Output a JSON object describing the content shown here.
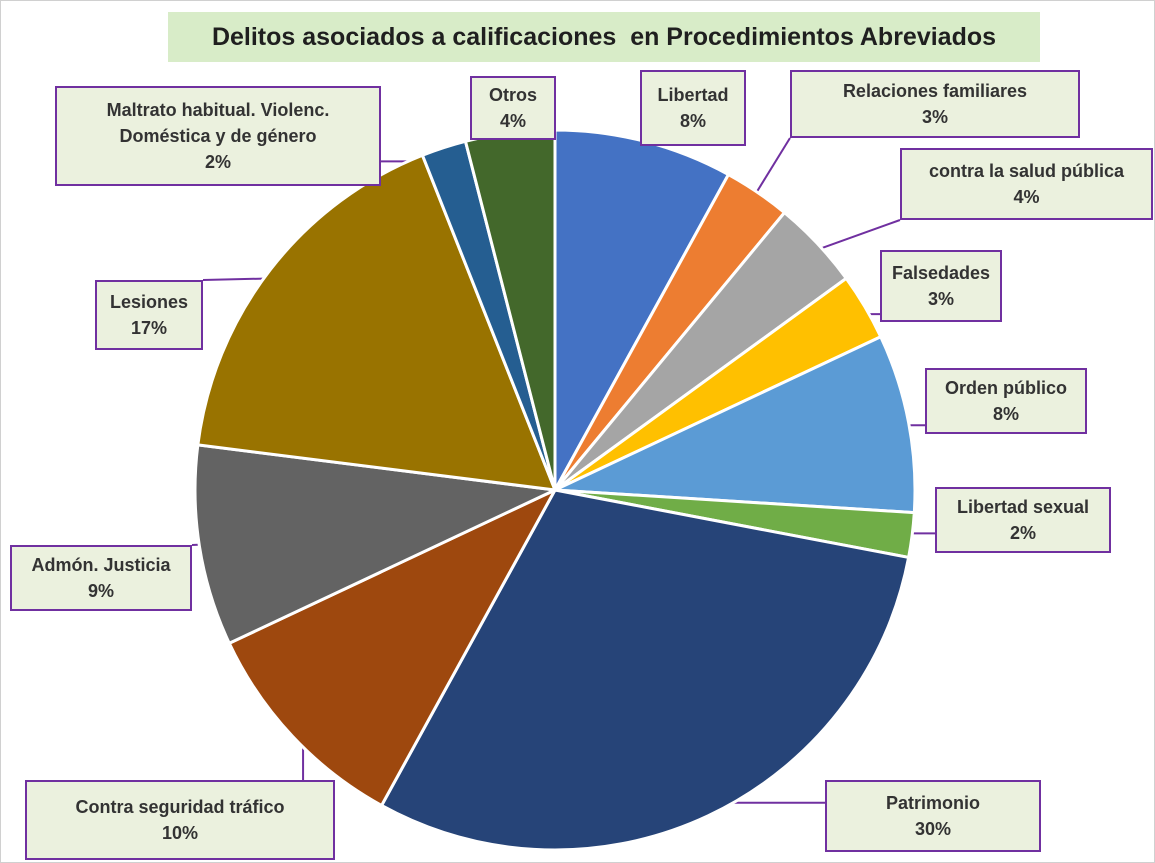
{
  "chart_data": {
    "type": "pie",
    "title": "Delitos asociados a calificaciones  en Procedimientos Abreviados",
    "categories": [
      "Libertad",
      "Relaciones familiares",
      "contra la salud pública",
      "Falsedades",
      "Orden público",
      "Libertad sexual",
      "Patrimonio",
      "Contra seguridad tráfico",
      "Admón. Justicia",
      "Lesiones",
      "Maltrato habitual. Violenc. Doméstica y de género",
      "Otros"
    ],
    "values": [
      8,
      3,
      4,
      3,
      8,
      2,
      30,
      10,
      9,
      17,
      2,
      4
    ],
    "value_labels": [
      "8%",
      "3%",
      "4%",
      "3%",
      "8%",
      "2%",
      "30%",
      "10%",
      "9%",
      "17%",
      "2%",
      "4%"
    ],
    "colors": [
      "#4472c4",
      "#ed7d31",
      "#a5a5a5",
      "#ffc000",
      "#5b9bd5",
      "#70ad47",
      "#264478",
      "#9e480e",
      "#636363",
      "#997300",
      "#255e91",
      "#43682b"
    ],
    "start_angle": 0,
    "direction": "clockwise"
  }
}
